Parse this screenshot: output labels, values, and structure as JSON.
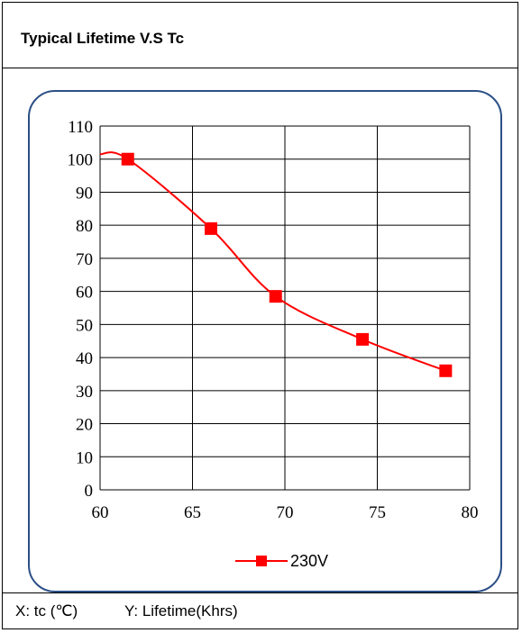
{
  "title": "Typical Lifetime V.S Tc",
  "footer": {
    "x_note": "X: tc (℃)",
    "y_note": "Y: Lifetime(Khrs)"
  },
  "colors": {
    "series": "#ff0000",
    "card_border": "#2b4f86",
    "grid": "#000000"
  },
  "chart_data": {
    "type": "line",
    "xlim": [
      60,
      80
    ],
    "ylim": [
      0,
      110
    ],
    "x_ticks": [
      "60",
      "65",
      "70",
      "75",
      "80"
    ],
    "y_ticks": [
      "0",
      "10",
      "20",
      "30",
      "40",
      "50",
      "60",
      "70",
      "80",
      "90",
      "100",
      "110"
    ],
    "grid": true,
    "legend_position": "bottom-center",
    "series": [
      {
        "name": "230V",
        "marker": "square",
        "x": [
          61.5,
          66,
          69.5,
          74.2,
          78.7
        ],
        "y": [
          100,
          79,
          58.5,
          45.5,
          36
        ]
      }
    ]
  }
}
